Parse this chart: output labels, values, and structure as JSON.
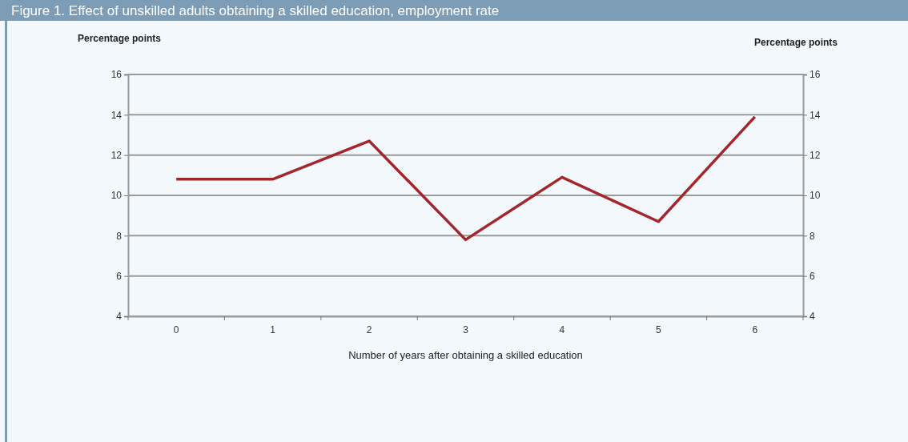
{
  "chart_data": {
    "type": "line",
    "title": "Figure 1. Effect of unskilled adults obtaining a skilled education, employment rate",
    "xlabel": "Number of years after obtaining a skilled education",
    "ylabel": "Percentage points",
    "y2label": "Percentage points",
    "categories": [
      "0",
      "1",
      "2",
      "3",
      "4",
      "5",
      "6"
    ],
    "series": [
      {
        "color": "#a3262a",
        "values": [
          10.8,
          10.8,
          12.7,
          7.8,
          10.9,
          8.7,
          13.9
        ]
      }
    ],
    "ylim": [
      4,
      16
    ],
    "yticks": [
      4,
      6,
      8,
      10,
      12,
      14,
      16
    ],
    "y2lim": [
      4,
      16
    ],
    "y2ticks": [
      4,
      6,
      8,
      10,
      12,
      14,
      16
    ],
    "grid": "y",
    "legend": false,
    "marker": "none",
    "line_style": "solid"
  }
}
